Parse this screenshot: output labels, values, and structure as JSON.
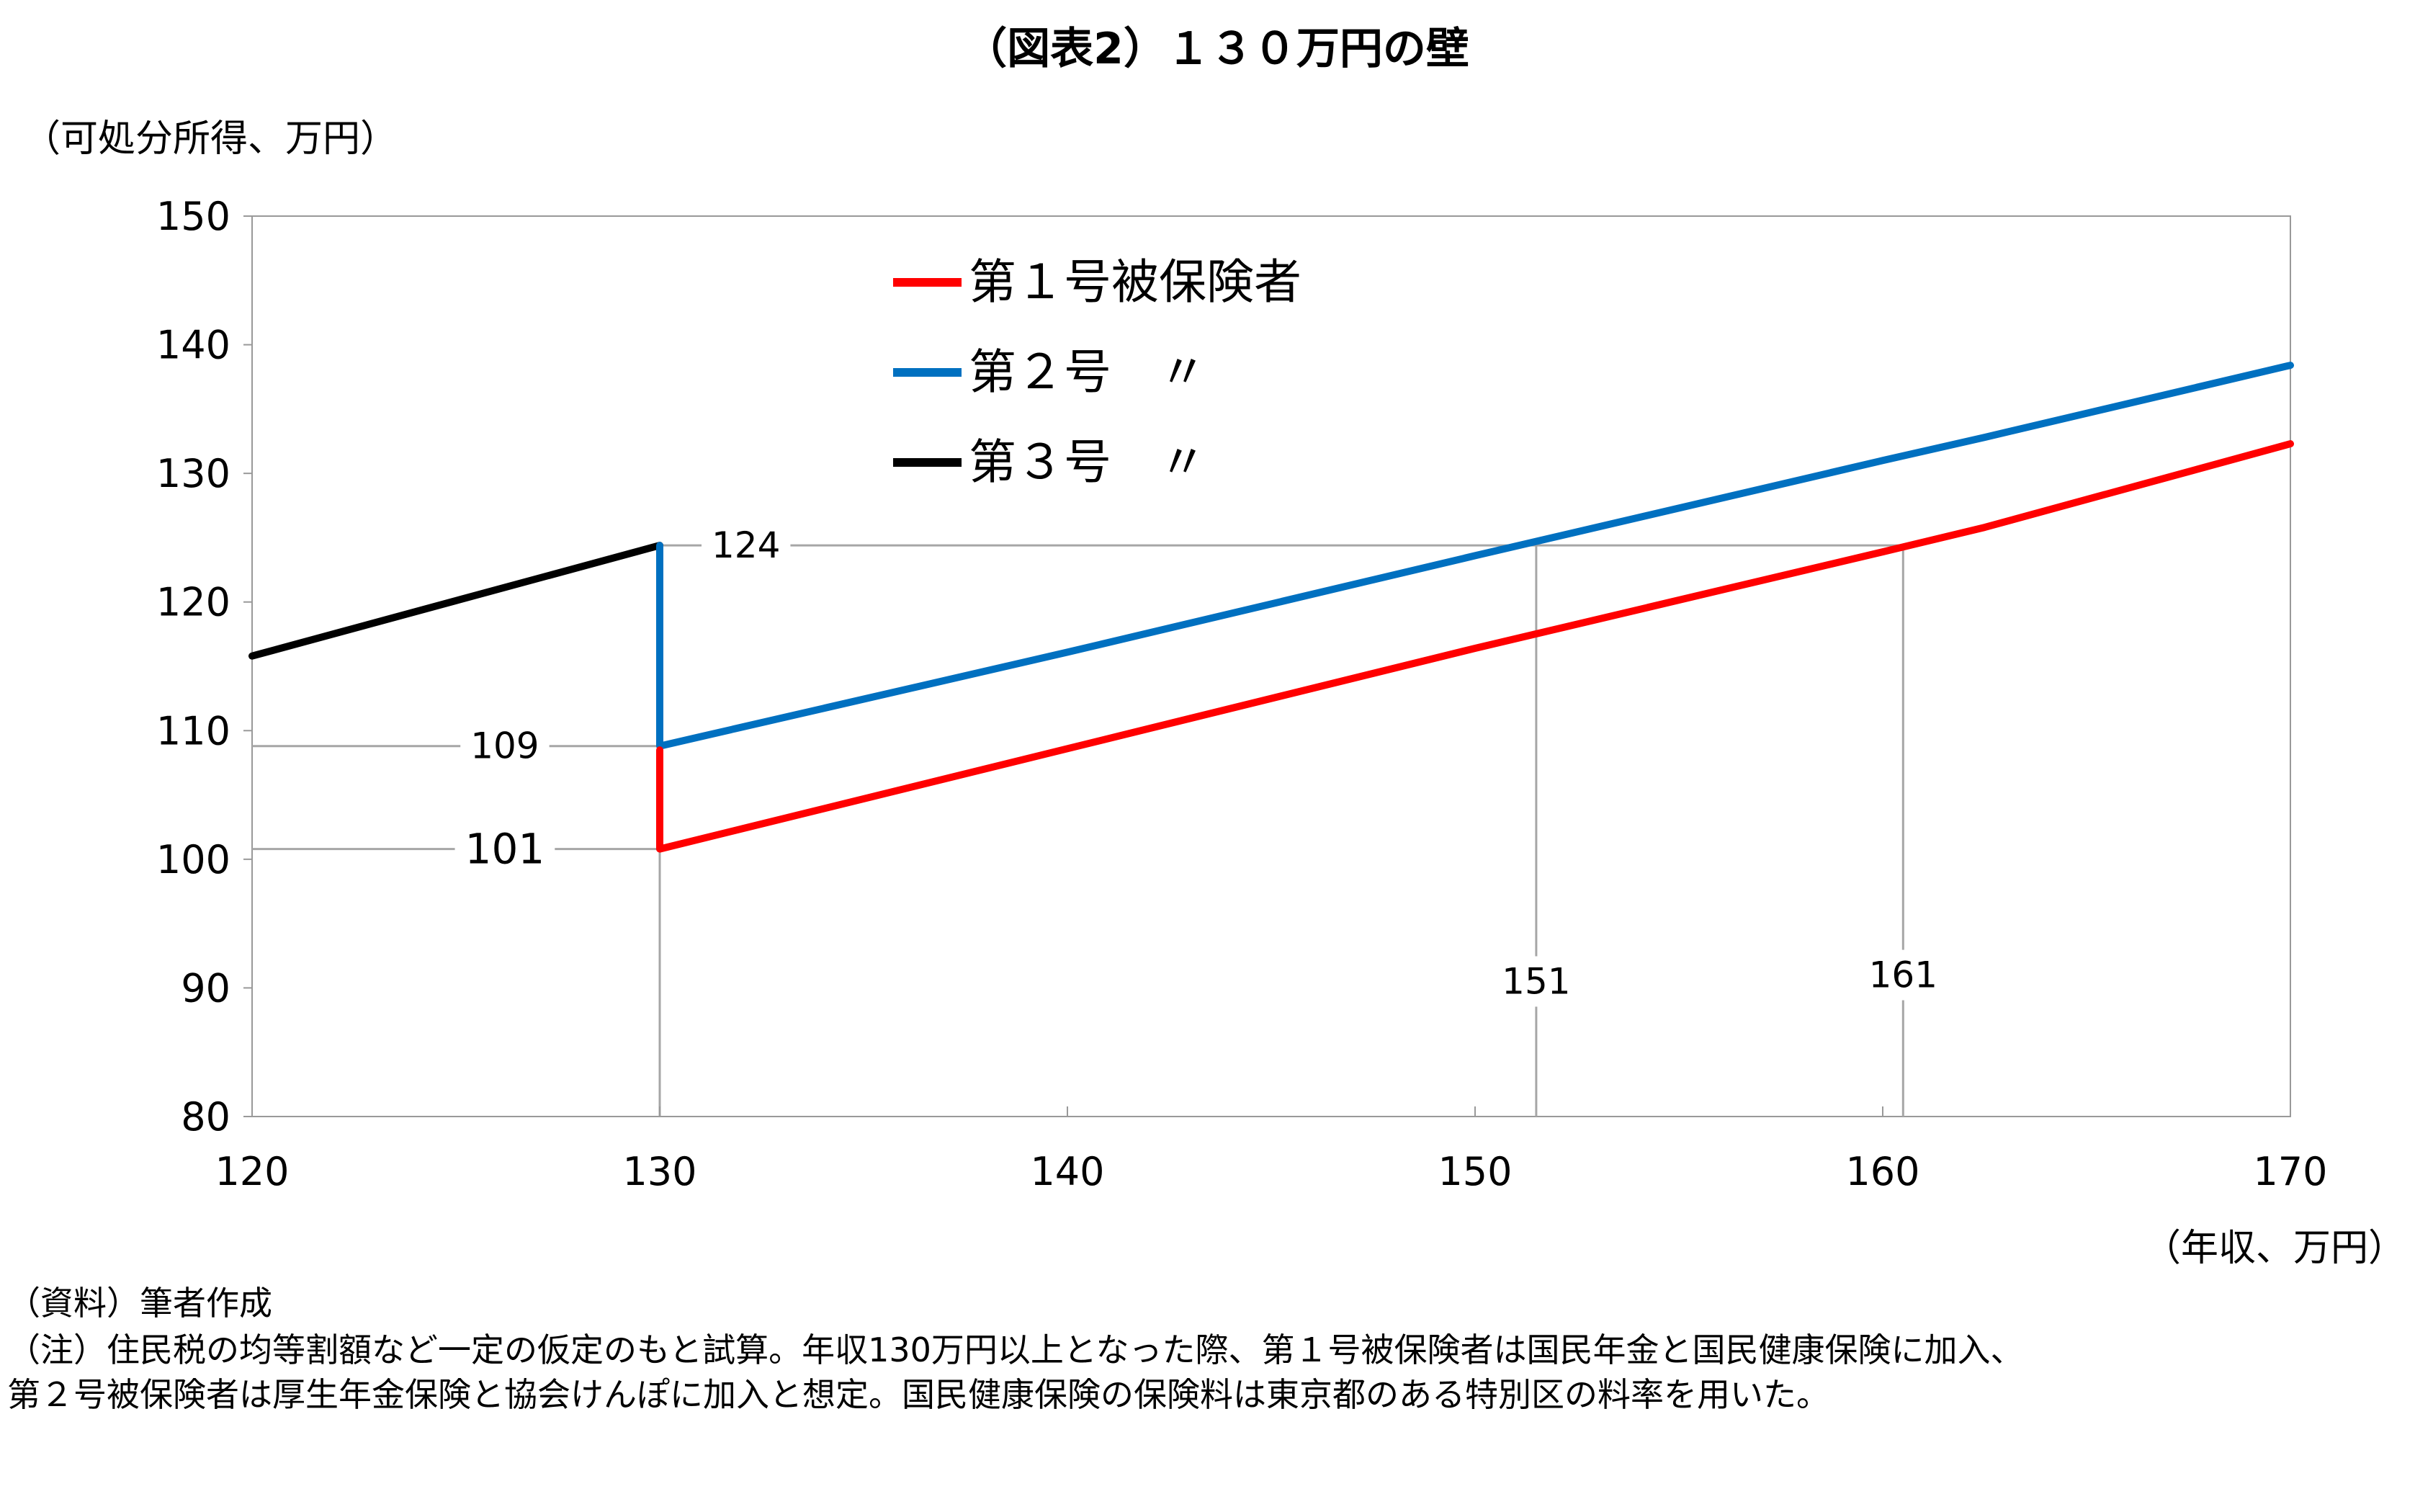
{
  "chart_data": {
    "type": "line",
    "title": "（図表2）１３０万円の壁",
    "ylabel": "（可処分所得、万円）",
    "xlabel": "（年収、万円）",
    "xlim": [
      120,
      170
    ],
    "ylim": [
      80,
      150
    ],
    "x_ticks": [
      "120",
      "130",
      "140",
      "150",
      "160",
      "170"
    ],
    "y_ticks": [
      "150",
      "140",
      "130",
      "120",
      "110",
      "100",
      "90",
      "80"
    ],
    "grid": false,
    "legend_position": "top-left",
    "series": [
      {
        "name": "第１号被保険者",
        "color": "#ff0000",
        "points": [
          [
            130,
            108.5
          ],
          [
            130,
            100.8
          ],
          [
            140,
            108.6
          ],
          [
            150,
            116.4
          ],
          [
            160,
            123.9
          ],
          [
            162.5,
            125.8
          ],
          [
            170,
            132.3
          ]
        ]
      },
      {
        "name": "第２号　〃",
        "color": "#0070c0",
        "points": [
          [
            130,
            124.4
          ],
          [
            130,
            108.8
          ],
          [
            140,
            116.1
          ],
          [
            150,
            123.6
          ],
          [
            160,
            131.0
          ],
          [
            162.5,
            132.8
          ],
          [
            170,
            138.4
          ]
        ]
      },
      {
        "name": "第３号　〃",
        "color": "#000000",
        "points": [
          [
            120,
            115.8
          ],
          [
            130,
            124.4
          ]
        ]
      }
    ],
    "annotations": [
      {
        "text": "124",
        "value": 124
      },
      {
        "text": "109",
        "value": 109
      },
      {
        "text": "101",
        "value": 101
      },
      {
        "text": "151",
        "value": 151
      },
      {
        "text": "161",
        "value": 161
      }
    ]
  },
  "notes": {
    "source": "（資料）筆者作成",
    "note_line1": "（注）住民税の均等割額など一定の仮定のもと試算。年収130万円以上となった際、第１号被保険者は国民年金と国民健康保険に加入、",
    "note_line2": "第２号被保険者は厚生年金保険と協会けんぽに加入と想定。国民健康保険の保険料は東京都のある特別区の料率を用いた。"
  }
}
